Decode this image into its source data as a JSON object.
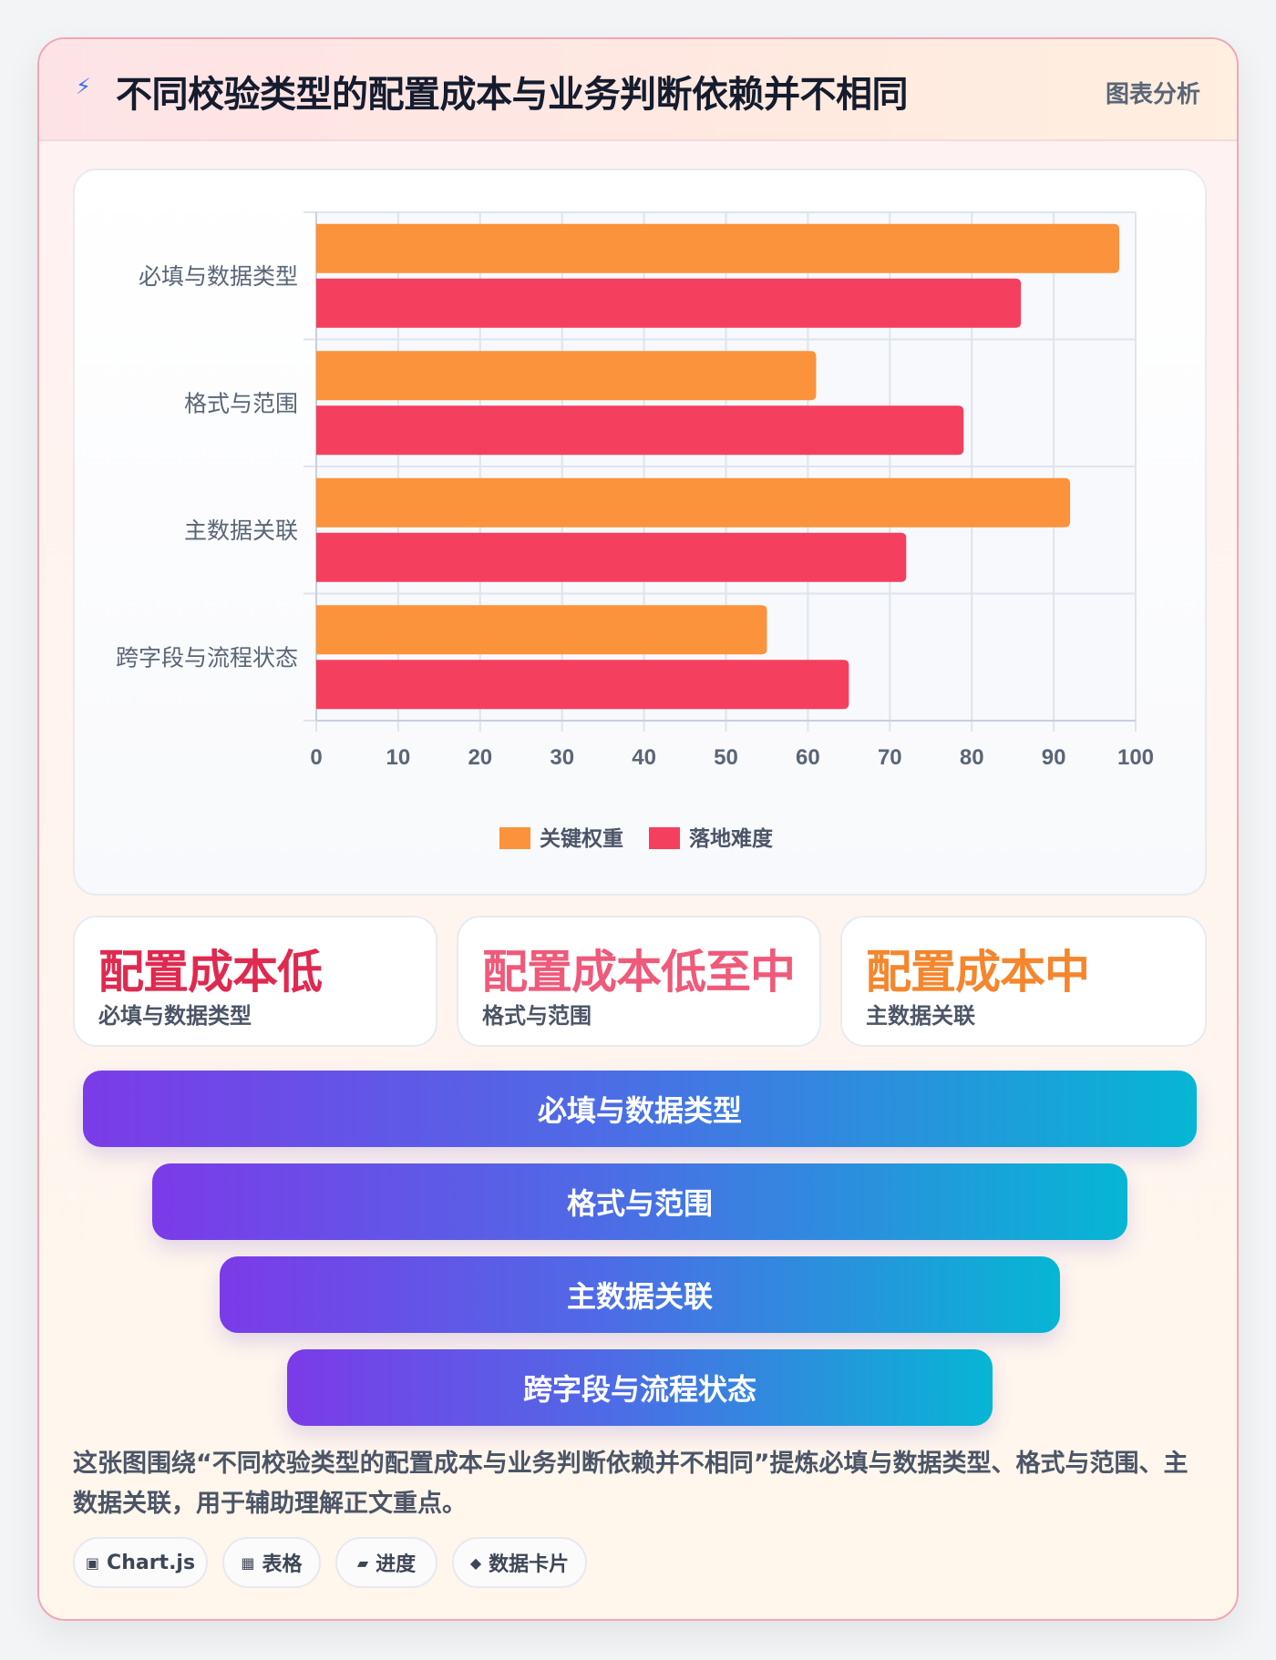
{
  "header": {
    "icon": "lightning-icon",
    "title": "不同校验类型的配置成本与业务判断依赖并不相同",
    "tag": "图表分析"
  },
  "chart_data": {
    "type": "bar",
    "orientation": "horizontal",
    "categories": [
      "必填与数据类型",
      "格式与范围",
      "主数据关联",
      "跨字段与流程状态"
    ],
    "series": [
      {
        "name": "关键权重",
        "values": [
          98,
          61,
          92,
          55
        ],
        "color": "#fb923c"
      },
      {
        "name": "落地难度",
        "values": [
          86,
          79,
          72,
          65
        ],
        "color": "#f43f5e"
      }
    ],
    "xlim": [
      0,
      100
    ],
    "xticks": [
      "0",
      "10",
      "20",
      "30",
      "40",
      "50",
      "60",
      "70",
      "80",
      "90",
      "100"
    ],
    "grid": true,
    "legend": "bottom"
  },
  "stats": [
    {
      "value": "配置成本低",
      "label": "必填与数据类型",
      "color": "#e0294f"
    },
    {
      "value": "配置成本低至中",
      "label": "格式与范围",
      "color": "#ef5a7a"
    },
    {
      "value": "配置成本中",
      "label": "主数据关联",
      "color": "#f4862d"
    }
  ],
  "funnel": [
    "必填与数据类型",
    "格式与范围",
    "主数据关联",
    "跨字段与流程状态"
  ],
  "description": "这张图围绕“不同校验类型的配置成本与业务判断依赖并不相同”提炼必填与数据类型、格式与范围、主数据关联，用于辅助理解正文重点。",
  "chips": [
    {
      "icon": "▣",
      "label": "Chart.js"
    },
    {
      "icon": "▦",
      "label": "表格"
    },
    {
      "icon": "▰",
      "label": "进度"
    },
    {
      "icon": "◆",
      "label": "数据卡片"
    }
  ]
}
